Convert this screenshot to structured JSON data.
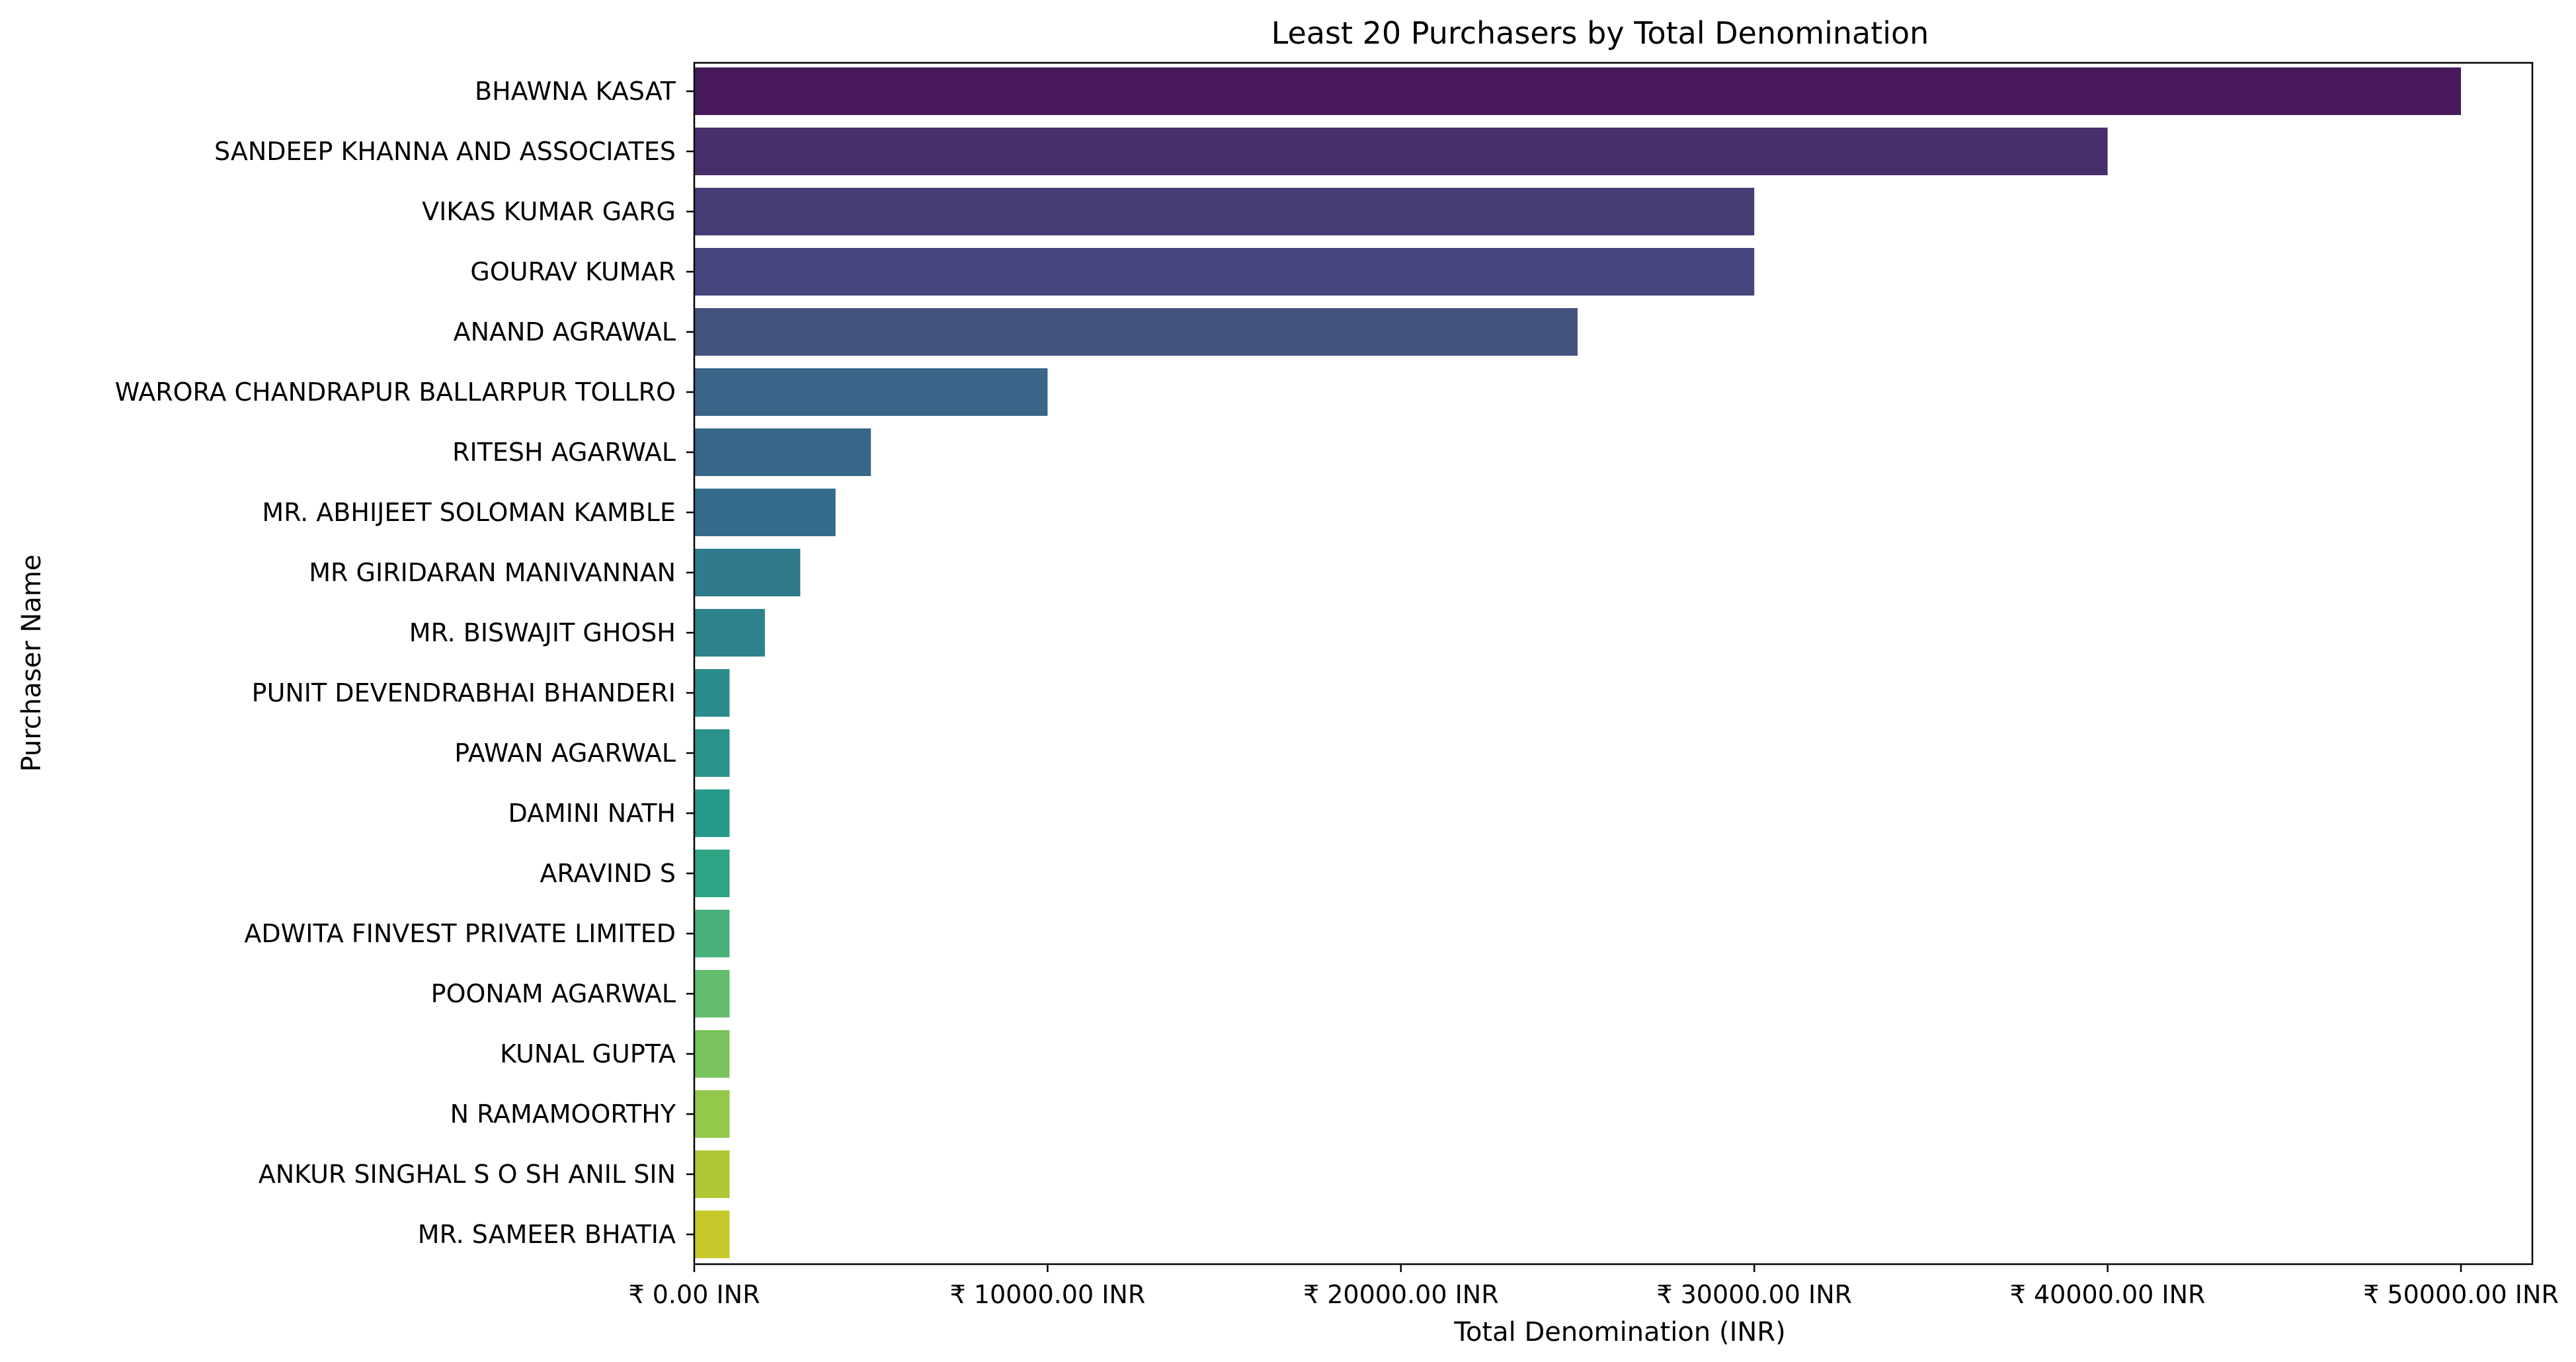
{
  "chart_data": {
    "type": "bar",
    "orientation": "horizontal",
    "title": "Least 20 Purchasers by Total Denomination",
    "xlabel": "Total Denomination (INR)",
    "ylabel": "Purchaser Name",
    "xlim": [
      0,
      53000
    ],
    "xticks": [
      0,
      10000,
      20000,
      30000,
      40000,
      50000
    ],
    "xtick_labels": [
      "₹ 0.00 INR",
      "₹ 10000.00 INR",
      "₹ 20000.00 INR",
      "₹ 30000.00 INR",
      "₹ 40000.00 INR",
      "₹ 50000.00 INR"
    ],
    "grid": false,
    "colormap": "viridis",
    "categories": [
      "BHAWNA KASAT",
      "SANDEEP KHANNA AND ASSOCIATES",
      "VIKAS KUMAR GARG",
      "GOURAV KUMAR",
      "ANAND AGRAWAL",
      "WARORA CHANDRAPUR BALLARPUR TOLLRO",
      "RITESH AGARWAL",
      "MR. ABHIJEET SOLOMAN KAMBLE",
      "MR GIRIDARAN MANIVANNAN",
      "MR. BISWAJIT GHOSH",
      "PUNIT DEVENDRABHAI BHANDERI",
      "PAWAN AGARWAL",
      "DAMINI NATH",
      "ARAVIND S",
      "ADWITA FINVEST PRIVATE LIMITED",
      "POONAM AGARWAL",
      "KUNAL GUPTA",
      "N RAMAMOORTHY",
      "ANKUR SINGHAL S O SH ANIL SIN",
      "MR. SAMEER BHATIA"
    ],
    "values": [
      50000,
      40000,
      30000,
      30000,
      25000,
      10000,
      5000,
      4000,
      3000,
      2000,
      1000,
      1000,
      1000,
      1000,
      1000,
      1000,
      1000,
      1000,
      1000,
      1000
    ],
    "colors": [
      "#481a5b",
      "#482e6b",
      "#463d77",
      "#45467d",
      "#42537e",
      "#3b6588",
      "#37688a",
      "#346d8b",
      "#317a8b",
      "#2e828c",
      "#2a8c8b",
      "#2a928a",
      "#269a88",
      "#2ea484",
      "#47b07b",
      "#64bd6f",
      "#78c35d",
      "#92c94b",
      "#aec734",
      "#c6c92a"
    ]
  }
}
